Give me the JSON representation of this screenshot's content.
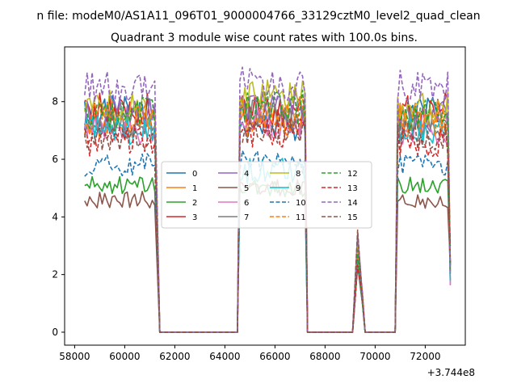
{
  "chart_data": {
    "type": "line",
    "suptitle": "n file: modeM0/AS1A11_096T01_9000004766_33129cztM0_level2_quad_clean",
    "title": "Quadrant 3 module wise count rates with 100.0s bins.",
    "x_offset_label": "+3.744e8",
    "xlim": [
      57600,
      73600
    ],
    "ylim": [
      -0.45,
      9.9
    ],
    "x_ticks": [
      58000,
      60000,
      62000,
      64000,
      66000,
      68000,
      70000,
      72000
    ],
    "x_tick_labels": [
      "58000",
      "60000",
      "62000",
      "64000",
      "66000",
      "68000",
      "70000",
      "72000"
    ],
    "y_ticks": [
      0,
      2,
      4,
      6,
      8
    ],
    "y_tick_labels": [
      "0",
      "2",
      "4",
      "6",
      "8"
    ],
    "grid": false,
    "legend": {
      "placement": "center",
      "ncol": 4
    },
    "segments": [
      {
        "start": 58400,
        "end": 61200
      },
      {
        "start": 64600,
        "end": 67200
      },
      {
        "start": 69200,
        "end": 69500
      },
      {
        "start": 70900,
        "end": 73000
      }
    ],
    "series": [
      {
        "name": "0",
        "color": "#1f77b4",
        "dashed": false,
        "level": 7.6,
        "level2": 7.2,
        "amp": 0.6
      },
      {
        "name": "1",
        "color": "#ff7f0e",
        "dashed": false,
        "level": 7.3,
        "level2": 7.3,
        "amp": 0.6
      },
      {
        "name": "2",
        "color": "#2ca02c",
        "dashed": false,
        "level": 5.1,
        "level2": 5.0,
        "amp": 0.3
      },
      {
        "name": "3",
        "color": "#d62728",
        "dashed": false,
        "level": 7.7,
        "level2": 7.7,
        "amp": 0.6
      },
      {
        "name": "4",
        "color": "#9467bd",
        "dashed": false,
        "level": 7.5,
        "level2": 7.8,
        "amp": 0.6
      },
      {
        "name": "5",
        "color": "#8c564b",
        "dashed": false,
        "level": 4.6,
        "level2": 5.0,
        "amp": 0.3
      },
      {
        "name": "6",
        "color": "#e377c2",
        "dashed": false,
        "level": 7.0,
        "level2": 7.2,
        "amp": 0.5
      },
      {
        "name": "7",
        "color": "#7f7f7f",
        "dashed": false,
        "level": 7.2,
        "level2": 7.6,
        "amp": 0.5
      },
      {
        "name": "8",
        "color": "#bcbd22",
        "dashed": false,
        "level": 7.8,
        "level2": 8.2,
        "amp": 0.6
      },
      {
        "name": "9",
        "color": "#17becf",
        "dashed": false,
        "level": 7.0,
        "level2": 5.6,
        "amp": 0.5
      },
      {
        "name": "10",
        "color": "#1f77b4",
        "dashed": true,
        "level": 5.8,
        "level2": 5.9,
        "amp": 0.4
      },
      {
        "name": "11",
        "color": "#ff7f0e",
        "dashed": true,
        "level": 7.4,
        "level2": 7.6,
        "amp": 0.6
      },
      {
        "name": "12",
        "color": "#2ca02c",
        "dashed": true,
        "level": 7.6,
        "level2": 7.8,
        "amp": 0.6
      },
      {
        "name": "13",
        "color": "#d62728",
        "dashed": true,
        "level": 6.6,
        "level2": 6.9,
        "amp": 0.5
      },
      {
        "name": "14",
        "color": "#9467bd",
        "dashed": true,
        "level": 8.5,
        "level2": 8.6,
        "amp": 0.6
      },
      {
        "name": "15",
        "color": "#8c564b",
        "dashed": true,
        "level": 6.8,
        "level2": 7.0,
        "amp": 0.5
      }
    ]
  }
}
